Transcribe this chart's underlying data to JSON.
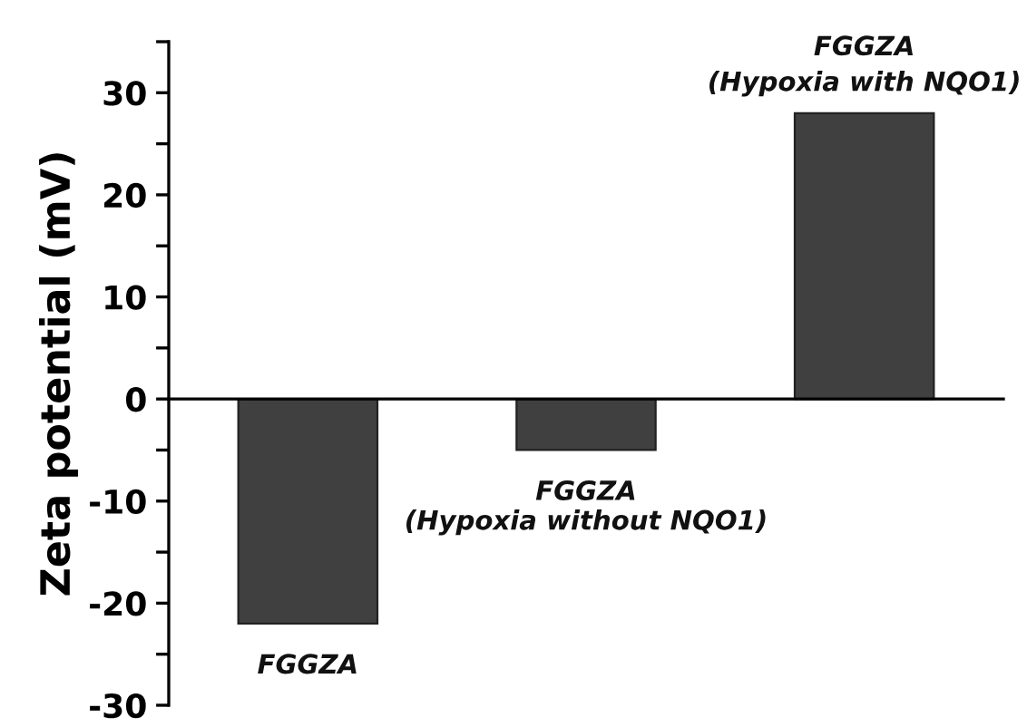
{
  "chart_data": {
    "type": "bar",
    "ylabel": "Zeta potential (mV)",
    "categories": [
      "FGGZA",
      "FGGZA\n(Hypoxia without NQO1)",
      "FGGZA\n(Hypoxia with NQO1)"
    ],
    "values": [
      -22,
      -5,
      28
    ],
    "color": "#404040",
    "ylim": [
      -30,
      35
    ],
    "yticks": [
      -30,
      {
        "value": -25,
        "label": null
      },
      -20,
      {
        "value": -15,
        "label": null
      },
      -10,
      {
        "value": -5,
        "label": null
      },
      0,
      {
        "value": 5,
        "label": null
      },
      10,
      {
        "value": 15,
        "label": null
      },
      20,
      {
        "value": 25,
        "label": null
      },
      30,
      {
        "value": 35,
        "label": null
      }
    ]
  }
}
